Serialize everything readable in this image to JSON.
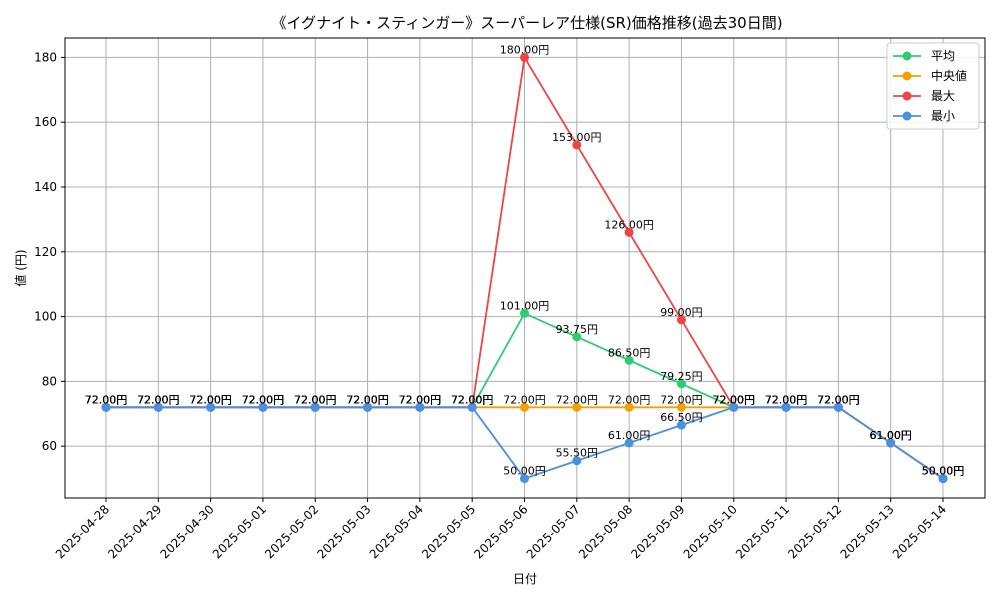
{
  "chart_data": {
    "type": "line",
    "title": "《イグナイト・スティンガー》スーパーレア仕様(SR)価格推移(過去30日間)",
    "xlabel": "日付",
    "ylabel": "値 (円)",
    "x": [
      "2025-04-28",
      "2025-04-29",
      "2025-04-30",
      "2025-05-01",
      "2025-05-02",
      "2025-05-03",
      "2025-05-04",
      "2025-05-05",
      "2025-05-06",
      "2025-05-07",
      "2025-05-08",
      "2025-05-09",
      "2025-05-10",
      "2025-05-11",
      "2025-05-12",
      "2025-05-13",
      "2025-05-14"
    ],
    "ylim": [
      44,
      186
    ],
    "yticks": [
      60,
      80,
      100,
      120,
      140,
      160,
      180
    ],
    "grid": true,
    "legend_position": "top-right",
    "series": [
      {
        "name": "平均",
        "color": "#2ecc71",
        "values": [
          72,
          72,
          72,
          72,
          72,
          72,
          72,
          72,
          101,
          93.75,
          86.5,
          79.25,
          72,
          72,
          72,
          61,
          50
        ],
        "labels": [
          "72.00円",
          "72.00円",
          "72.00円",
          "72.00円",
          "72.00円",
          "72.00円",
          "72.00円",
          "72.00円",
          "101.00円",
          "93.75円",
          "86.50円",
          "79.25円",
          "72.00円",
          "72.00円",
          "72.00円",
          "61.00円",
          "50.00円"
        ]
      },
      {
        "name": "中央値",
        "color": "#f5a000",
        "values": [
          72,
          72,
          72,
          72,
          72,
          72,
          72,
          72,
          72,
          72,
          72,
          72,
          72,
          72,
          72,
          61,
          50
        ],
        "labels": [
          "72.00円",
          "72.00円",
          "72.00円",
          "72.00円",
          "72.00円",
          "72.00円",
          "72.00円",
          "72.00円",
          "72.00円",
          "72.00円",
          "72.00円",
          "72.00円",
          "72.00円",
          "72.00円",
          "72.00円",
          "61.00円",
          "50.00円"
        ]
      },
      {
        "name": "最大",
        "color": "#ef4444",
        "values": [
          72,
          72,
          72,
          72,
          72,
          72,
          72,
          72,
          180,
          153,
          126,
          99,
          72,
          72,
          72,
          61,
          50
        ],
        "labels": [
          "72.00円",
          "72.00円",
          "72.00円",
          "72.00円",
          "72.00円",
          "72.00円",
          "72.00円",
          "72.00円",
          "180.00円",
          "153.00円",
          "126.00円",
          "99.00円",
          "72.00円",
          "72.00円",
          "72.00円",
          "61.00円",
          "50.00円"
        ]
      },
      {
        "name": "最小",
        "color": "#4a90e2",
        "values": [
          72,
          72,
          72,
          72,
          72,
          72,
          72,
          72,
          50,
          55.5,
          61,
          66.5,
          72,
          72,
          72,
          61,
          50
        ],
        "labels": [
          "72.00円",
          "72.00円",
          "72.00円",
          "72.00円",
          "72.00円",
          "72.00円",
          "72.00円",
          "72.00円",
          "50.00円",
          "55.50円",
          "61.00円",
          "66.50円",
          "72.00円",
          "72.00円",
          "72.00円",
          "61.00円",
          "50.00円"
        ]
      }
    ]
  }
}
